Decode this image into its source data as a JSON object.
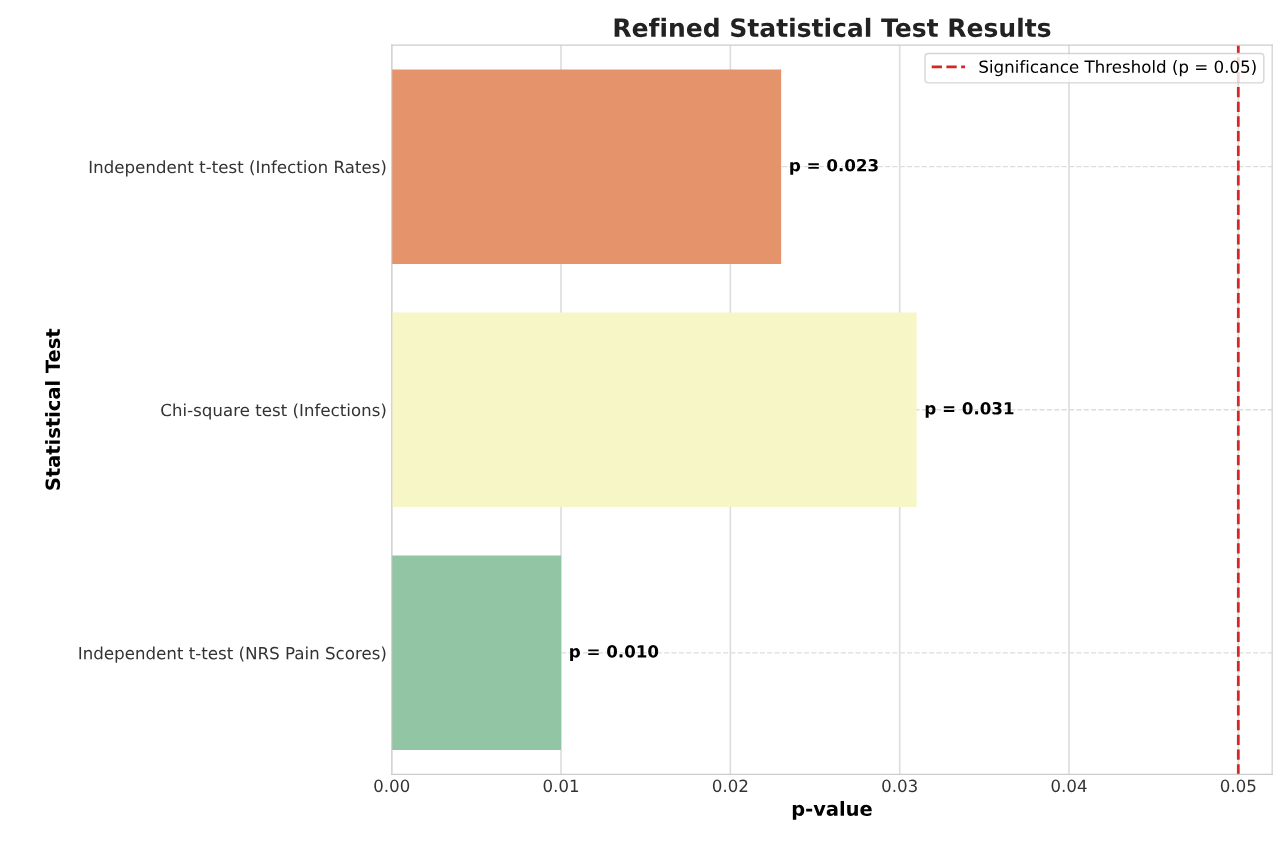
{
  "chart_data": {
    "type": "bar",
    "orientation": "horizontal",
    "title": "Refined Statistical Test Results",
    "xlabel": "p-value",
    "ylabel": "Statistical Test",
    "categories": [
      "Independent t-test (Infection Rates)",
      "Chi-square test (Infections)",
      "Independent t-test (NRS Pain Scores)"
    ],
    "values": [
      0.023,
      0.031,
      0.01
    ],
    "colors": [
      "#e4936b",
      "#f6f6c6",
      "#92c5a4"
    ],
    "value_labels": [
      "p = 0.023",
      "p = 0.031",
      "p = 0.010"
    ],
    "xlim": [
      0,
      0.052
    ],
    "xticks": [
      {
        "value": 0,
        "label": "0.00"
      },
      {
        "value": 0.01,
        "label": "0.01"
      },
      {
        "value": 0.02,
        "label": "0.02"
      },
      {
        "value": 0.03,
        "label": "0.03"
      },
      {
        "value": 0.04,
        "label": "0.04"
      },
      {
        "value": 0.05,
        "label": "0.05"
      }
    ],
    "ref_lines": [
      {
        "axis": "x",
        "value": 0.05,
        "label": "Significance Threshold (p = 0.05)",
        "color": "#d62728",
        "line_style": "dashed"
      }
    ],
    "grid": true,
    "legend": "top right"
  }
}
